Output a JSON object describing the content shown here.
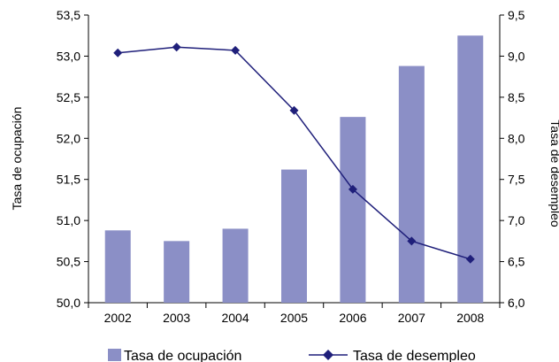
{
  "chart_data": {
    "type": "bar",
    "categories": [
      "2002",
      "2003",
      "2004",
      "2005",
      "2006",
      "2007",
      "2008"
    ],
    "series": [
      {
        "name": "Tasa de ocupación",
        "type": "bar",
        "axis": "left",
        "values": [
          50.88,
          50.75,
          50.9,
          51.62,
          52.26,
          52.88,
          53.25
        ]
      },
      {
        "name": "Tasa de desempleo",
        "type": "line",
        "axis": "right",
        "values": [
          9.04,
          9.11,
          9.07,
          8.34,
          7.38,
          6.75,
          6.53
        ]
      }
    ],
    "ylabel": "Tasa de ocupación",
    "y2label": "Tasa de desempleo",
    "ylim": [
      50.0,
      53.5
    ],
    "y2lim": [
      6.0,
      9.5
    ],
    "yticks": [
      "50,0",
      "50,5",
      "51,0",
      "51,5",
      "52,0",
      "52,5",
      "53,0",
      "53,5"
    ],
    "y2ticks": [
      "6,0",
      "6,5",
      "7,0",
      "7,5",
      "8,0",
      "8,5",
      "9,0",
      "9,5"
    ],
    "grid": false,
    "legend_position": "bottom",
    "colors": {
      "bar": "#8b8fc6",
      "line": "#1f1f7a",
      "axis": "#000000"
    }
  }
}
